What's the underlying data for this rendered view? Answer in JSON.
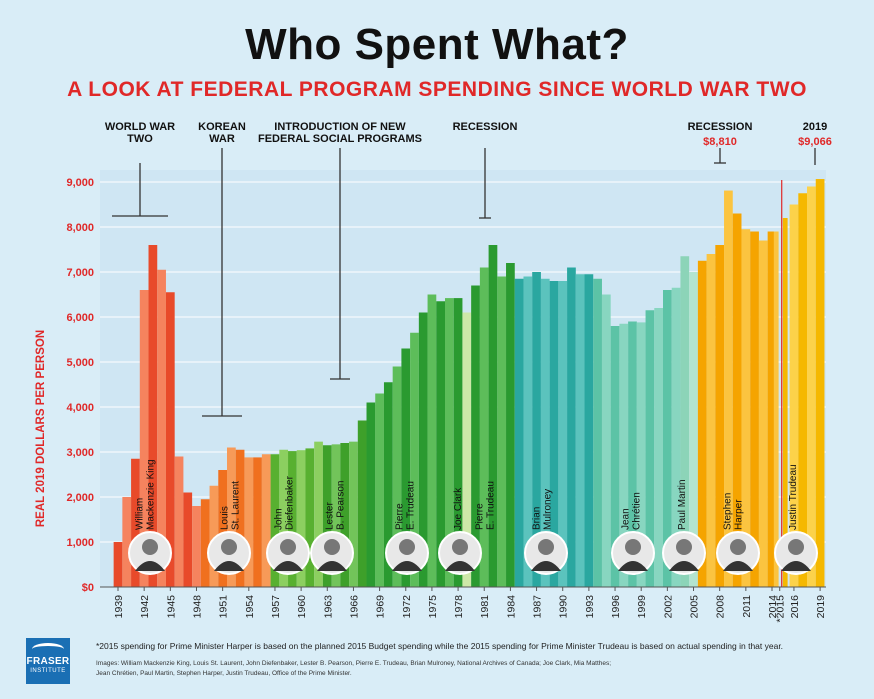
{
  "title": "Who Spent What?",
  "subtitle": "A LOOK AT FEDERAL PROGRAM SPENDING SINCE WORLD WAR TWO",
  "footnote": "*2015 spending for Prime Minister Harper is based on the planned 2015 Budget spending while the 2015 spending for Prime Minister Trudeau is based on actual spending in that year.",
  "credits_line1": "Images: William Mackenzie King, Louis St. Laurent, John Diefenbaker, Lester B. Pearson, Pierre E. Trudeau, Brian Mulroney, National Archives of Canada; Joe Clark, Mia Matthes;",
  "credits_line2": "Jean Chrétien, Paul Martin, Stephen Harper, Justin Trudeau, Office of the Prime Minister.",
  "logo": {
    "name": "FRASER",
    "sub": "INSTITUTE"
  },
  "chart_data": {
    "type": "bar",
    "ylabel": "REAL 2019 DOLLARS PER PERSON",
    "ylim": [
      0,
      9300
    ],
    "yticks": [
      0,
      1000,
      2000,
      3000,
      4000,
      5000,
      6000,
      7000,
      8000,
      9000
    ],
    "ytick_labels": [
      "$0",
      "1,000",
      "2,000",
      "3,000",
      "4,000",
      "5,000",
      "6,000",
      "7,000",
      "8,000",
      "9,000"
    ],
    "xtick_labels": [
      "1939",
      "1942",
      "1945",
      "1948",
      "1951",
      "1954",
      "1957",
      "1960",
      "1963",
      "1966",
      "1969",
      "1972",
      "1975",
      "1978",
      "1981",
      "1984",
      "1987",
      "1990",
      "1993",
      "1996",
      "1999",
      "2002",
      "2005",
      "2008",
      "2011",
      "2014",
      "*2015",
      "2016",
      "2019"
    ],
    "bar_colors": {
      "dark": "#e0401f",
      "light": "#f07a54"
    },
    "series": [
      {
        "name": "William Mackenzie King",
        "color": "#e84a2a",
        "color2": "#f5835e",
        "x": [
          1939,
          1940,
          1941,
          1942,
          1943,
          1944,
          1945,
          1946,
          1947,
          1948
        ],
        "values": [
          1000,
          2000,
          2850,
          6600,
          7600,
          7050,
          6550,
          2900,
          2100,
          1800
        ]
      },
      {
        "name": "Louis St. Laurent",
        "color": "#f0701f",
        "color2": "#f79a58",
        "x": [
          1949,
          1950,
          1951,
          1952,
          1953,
          1954,
          1955,
          1956
        ],
        "values": [
          1950,
          2250,
          2600,
          3100,
          3050,
          2880,
          2880,
          2950
        ]
      },
      {
        "name": "John Diefenbaker",
        "color": "#58b030",
        "color2": "#8ccf60",
        "x": [
          1957,
          1958,
          1959,
          1960,
          1961,
          1962
        ],
        "values": [
          2950,
          3050,
          3020,
          3040,
          3080,
          3230
        ]
      },
      {
        "name": "Lester B. Pearson",
        "color": "#3ea02a",
        "color2": "#72c45a",
        "x": [
          1963,
          1964,
          1965,
          1966,
          1967,
          1968
        ],
        "values": [
          3150,
          3170,
          3200,
          3230,
          3700,
          4050
        ]
      },
      {
        "name": "Pierre E. Trudeau",
        "color": "#2a9a30",
        "color2": "#5dbd5a",
        "x": [
          1968,
          1969,
          1970,
          1971,
          1972,
          1973,
          1974,
          1975,
          1976,
          1977,
          1978
        ],
        "values": [
          4100,
          4300,
          4550,
          4900,
          5300,
          5650,
          6100,
          6500,
          6350,
          6420,
          6420
        ]
      },
      {
        "name": "Joe Clark",
        "color": "#cde8a8",
        "color2": "#cde8a8",
        "x": [
          1979
        ],
        "values": [
          6100
        ]
      },
      {
        "name": "Pierre E. Trudeau",
        "color": "#2a9a30",
        "color2": "#5dbd5a",
        "x": [
          1980,
          1981,
          1982,
          1983,
          1984
        ],
        "values": [
          6700,
          7100,
          7600,
          6900,
          7200
        ]
      },
      {
        "name": "Brian Mulroney",
        "color": "#2aa7a0",
        "color2": "#5bc3bd",
        "x": [
          1985,
          1986,
          1987,
          1988,
          1989,
          1990,
          1991,
          1992,
          1993
        ],
        "values": [
          6850,
          6900,
          7000,
          6850,
          6800,
          6800,
          7100,
          6950,
          6950
        ]
      },
      {
        "name": "Jean Chrétien",
        "color": "#5cc3a6",
        "color2": "#88d6c0",
        "x": [
          1994,
          1995,
          1996,
          1997,
          1998,
          1999,
          2000,
          2001,
          2002,
          2003
        ],
        "values": [
          6850,
          6500,
          5800,
          5850,
          5900,
          5880,
          6150,
          6200,
          6600,
          6650
        ]
      },
      {
        "name": "Paul Martin",
        "color": "#8cd4b8",
        "color2": "#b3e4cf",
        "x": [
          2004,
          2005
        ],
        "values": [
          7350,
          7000
        ]
      },
      {
        "name": "Stephen Harper",
        "color": "#f5a400",
        "color2": "#fbc440",
        "x": [
          2006,
          2007,
          2008,
          2009,
          2010,
          2011,
          2012,
          2013,
          2014,
          2015
        ],
        "values": [
          7250,
          7400,
          7600,
          8810,
          8300,
          7950,
          7900,
          7700,
          7900,
          7900
        ]
      },
      {
        "name": "Justin Trudeau",
        "color": "#f5b800",
        "color2": "#fcd24a",
        "x": [
          2015,
          2016,
          2017,
          2018,
          2019
        ],
        "values": [
          8200,
          8500,
          8750,
          8900,
          9066
        ]
      }
    ],
    "annotations": [
      {
        "label": [
          "WORLD WAR",
          "TWO"
        ]
      },
      {
        "label": [
          "KOREAN",
          "WAR"
        ]
      },
      {
        "label": [
          "INTRODUCTION OF NEW",
          "FEDERAL SOCIAL PROGRAMS"
        ]
      },
      {
        "label": [
          "RECESSION"
        ]
      },
      {
        "label": [
          "RECESSION"
        ],
        "value": "$8,810"
      },
      {
        "label": [
          "2019"
        ],
        "value": "$9,066"
      }
    ],
    "pm_labels": [
      [
        "William",
        "Mackenzie King"
      ],
      [
        "Louis",
        "St. Laurent"
      ],
      [
        "John",
        "Diefenbaker"
      ],
      [
        "Lester",
        "B. Pearson"
      ],
      [
        "Pierre",
        "E. Trudeau"
      ],
      [
        "Joe Clark"
      ],
      [
        "Pierre",
        "E. Trudeau"
      ],
      [
        "Brian",
        "Mulroney"
      ],
      [
        "Jean",
        "Chrétien"
      ],
      [
        "Paul Martin"
      ],
      [
        "Stephen",
        "Harper"
      ],
      [
        "Justin Trudeau"
      ]
    ],
    "portraits": [
      "William Mackenzie King",
      "Louis St. Laurent",
      "John Diefenbaker",
      "Lester B. Pearson",
      "Pierre E. Trudeau",
      "Joe Clark",
      "Brian Mulroney",
      "Jean Chrétien",
      "Paul Martin",
      "Stephen Harper",
      "Justin Trudeau"
    ]
  }
}
